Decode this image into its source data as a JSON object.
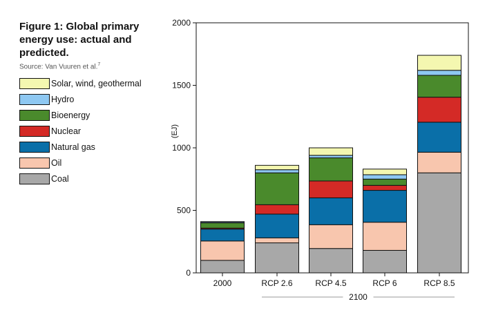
{
  "figure": {
    "title": "Figure 1: Global primary energy use: actual and predicted.",
    "source": "Source: Van Vuuren et al.",
    "source_ref": "7"
  },
  "chart_data": {
    "type": "bar",
    "stacked": true,
    "title": "Figure 1: Global primary energy use: actual and predicted.",
    "xlabel": "",
    "ylabel": "(EJ)",
    "ylim": [
      0,
      2000
    ],
    "yticks": [
      0,
      500,
      1000,
      1500,
      2000
    ],
    "categories": [
      "2000",
      "RCP 2.6",
      "RCP 4.5",
      "RCP 6",
      "RCP 8.5"
    ],
    "category_group": {
      "label": "2100",
      "members": [
        "RCP 2.6",
        "RCP 4.5",
        "RCP 6",
        "RCP 8.5"
      ]
    },
    "grid": false,
    "legend_position": "left",
    "series": [
      {
        "name": "Coal",
        "color": "#a8a8a8",
        "values": [
          100,
          240,
          195,
          180,
          800
        ]
      },
      {
        "name": "Oil",
        "color": "#f8c6ae",
        "values": [
          155,
          40,
          190,
          225,
          165
        ]
      },
      {
        "name": "Natural gas",
        "color": "#0a6fa8",
        "values": [
          95,
          190,
          215,
          255,
          240
        ]
      },
      {
        "name": "Nuclear",
        "color": "#d42a26",
        "values": [
          8,
          75,
          135,
          40,
          200
        ]
      },
      {
        "name": "Bioenergy",
        "color": "#4a8a2c",
        "values": [
          42,
          255,
          185,
          50,
          175
        ]
      },
      {
        "name": "Hydro",
        "color": "#8ec8f2",
        "values": [
          8,
          25,
          20,
          35,
          40
        ]
      },
      {
        "name": "Solar, wind, geothermal",
        "color": "#f4f7b0",
        "values": [
          2,
          35,
          60,
          45,
          120
        ]
      }
    ],
    "legend_order": [
      "Solar, wind, geothermal",
      "Hydro",
      "Bioenergy",
      "Nuclear",
      "Natural gas",
      "Oil",
      "Coal"
    ]
  }
}
